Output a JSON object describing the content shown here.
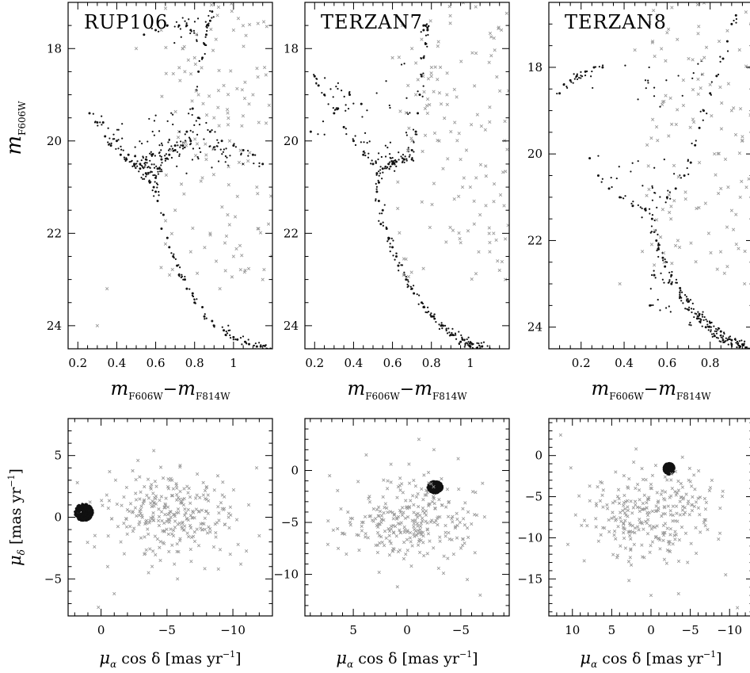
{
  "figure": {
    "colors": {
      "member": "#111111",
      "field": "#9a9a9a",
      "frame": "#000000"
    },
    "symbols": {
      "member": "filled-dot",
      "field": "small-x-cross"
    }
  },
  "chart_data": [
    {
      "type": "scatter",
      "kind": "cmd",
      "title": "RUP106",
      "xlabel_main": "m",
      "xlabel_sub1": "F606W",
      "xlabel_dash": "−",
      "xlabel_main2": "m",
      "xlabel_sub2": "F814W",
      "ylabel_main": "m",
      "ylabel_sub": "F606W",
      "show_ylabel": true,
      "xlim": [
        0.15,
        1.2
      ],
      "ylim": [
        24.5,
        17.0
      ],
      "reversed_y": true,
      "xticks": [
        0.2,
        0.4,
        0.6,
        0.8,
        1.0
      ],
      "xtick_labels": [
        "0.2",
        "0.4",
        "0.6",
        "0.8",
        "1"
      ],
      "yticks": [
        18,
        20,
        22,
        24
      ],
      "ytick_labels": [
        "18",
        "20",
        "22",
        "24"
      ],
      "series": [
        {
          "role": "member",
          "x": [
            0.64,
            0.66,
            0.69,
            0.72,
            0.76,
            0.8,
            0.85,
            0.9,
            0.96,
            1.02,
            1.08,
            1.14,
            1.19,
            0.63,
            0.67,
            0.71,
            0.75,
            0.79,
            0.84,
            0.89,
            0.95,
            1.0,
            1.06,
            1.12,
            1.17,
            0.58,
            0.55,
            0.52,
            0.46,
            0.4,
            0.33,
            0.26,
            0.62,
            0.7,
            0.76,
            0.79,
            0.81,
            0.82,
            0.84,
            0.85,
            0.86,
            0.87,
            0.88,
            0.89,
            0.9,
            0.54,
            0.6,
            0.66,
            0.72,
            0.76,
            0.78,
            0.59,
            0.57,
            0.55,
            0.52,
            0.49,
            0.45,
            0.42,
            0.37,
            0.34,
            0.3,
            0.61,
            0.6,
            0.6,
            0.61,
            0.63,
            0.67,
            0.7,
            0.74,
            0.78,
            0.82,
            0.88,
            0.94,
            1.0,
            1.05,
            1.1,
            1.15
          ],
          "y": [
            21.6,
            22.1,
            22.5,
            22.9,
            23.2,
            23.5,
            23.8,
            24.0,
            24.2,
            24.3,
            24.4,
            24.45,
            24.5,
            21.9,
            22.3,
            22.7,
            23.0,
            23.3,
            23.6,
            23.9,
            24.1,
            24.25,
            24.35,
            24.45,
            24.5,
            20.3,
            20.4,
            20.5,
            20.3,
            20.0,
            19.6,
            19.4,
            20.6,
            20.1,
            19.8,
            19.3,
            18.9,
            18.5,
            18.2,
            17.9,
            17.7,
            17.5,
            17.4,
            17.2,
            17.0,
            17.7,
            17.6,
            17.5,
            17.5,
            17.5,
            17.6,
            21.0,
            20.9,
            20.7,
            20.6,
            20.5,
            20.4,
            20.3,
            20.1,
            19.9,
            19.6,
            21.3,
            21.1,
            20.8,
            20.6,
            20.4,
            20.3,
            20.2,
            20.1,
            20.0,
            19.5,
            19.8,
            20.0,
            20.1,
            20.2,
            20.3,
            20.5
          ]
        },
        {
          "role": "field",
          "x": [
            0.75,
            0.82,
            0.9,
            0.98,
            1.05,
            1.12,
            0.7,
            0.88,
            1.0,
            1.15,
            0.8,
            0.95,
            1.08,
            0.72,
            0.86,
            1.02,
            1.18,
            0.78,
            0.93,
            1.1,
            0.68,
            0.84,
            0.97,
            1.06,
            0.74,
            0.91,
            1.13,
            1.0,
            0.35,
            0.5,
            0.3
          ],
          "y": [
            18.5,
            19.0,
            19.5,
            20.0,
            20.5,
            21.0,
            21.5,
            22.0,
            22.5,
            23.0,
            18.2,
            18.8,
            19.2,
            19.8,
            20.4,
            21.2,
            21.8,
            22.4,
            23.2,
            19.0,
            20.2,
            20.8,
            21.6,
            22.8,
            18.0,
            17.8,
            19.6,
            17.6,
            23.2,
            18.0,
            24.0
          ]
        }
      ]
    },
    {
      "type": "scatter",
      "kind": "cmd",
      "title": "TERZAN7",
      "xlabel_main": "m",
      "xlabel_sub1": "F606W",
      "xlabel_dash": "−",
      "xlabel_main2": "m",
      "xlabel_sub2": "F814W",
      "ylabel_main": "",
      "ylabel_sub": "",
      "show_ylabel": false,
      "xlim": [
        0.15,
        1.2
      ],
      "ylim": [
        24.5,
        17.0
      ],
      "reversed_y": true,
      "xticks": [
        0.2,
        0.4,
        0.6,
        0.8,
        1.0
      ],
      "xtick_labels": [
        "0.2",
        "0.4",
        "0.6",
        "0.8",
        "1"
      ],
      "yticks": [
        18,
        20,
        22,
        24
      ],
      "ytick_labels": [
        "18",
        "20",
        "22",
        "24"
      ],
      "series": [
        {
          "role": "member",
          "x": [
            0.55,
            0.57,
            0.6,
            0.63,
            0.67,
            0.71,
            0.76,
            0.81,
            0.86,
            0.91,
            0.96,
            1.01,
            1.06,
            1.1,
            0.54,
            0.58,
            0.62,
            0.66,
            0.7,
            0.75,
            0.8,
            0.85,
            0.9,
            0.95,
            1.0,
            1.05,
            0.6,
            0.66,
            0.7,
            0.72,
            0.73,
            0.74,
            0.75,
            0.76,
            0.77,
            0.78,
            0.76,
            0.76,
            0.77,
            0.78,
            0.5,
            0.45,
            0.4,
            0.35,
            0.3,
            0.25,
            0.2,
            0.53,
            0.52,
            0.52,
            0.53,
            0.55,
            0.58,
            0.62,
            0.66,
            0.7,
            0.44,
            0.38,
            0.32,
            0.22,
            0.18
          ],
          "y": [
            21.5,
            21.9,
            22.3,
            22.7,
            23.0,
            23.3,
            23.6,
            23.8,
            24.0,
            24.2,
            24.3,
            24.4,
            24.45,
            24.5,
            21.8,
            22.1,
            22.5,
            22.9,
            23.2,
            23.5,
            23.8,
            24.0,
            24.2,
            24.35,
            24.45,
            24.5,
            20.5,
            20.4,
            20.2,
            19.8,
            19.4,
            19.0,
            18.6,
            18.2,
            17.9,
            17.6,
            17.5,
            17.6,
            17.5,
            17.55,
            20.5,
            20.3,
            20.0,
            19.7,
            19.4,
            19.0,
            18.6,
            20.9,
            20.7,
            21.1,
            21.3,
            20.6,
            20.5,
            20.45,
            20.4,
            20.4,
            19.2,
            19.0,
            19.3,
            18.8,
            19.8
          ]
        },
        {
          "role": "field",
          "x": [
            0.65,
            0.7,
            0.8,
            0.85,
            0.9,
            0.95,
            1.0,
            1.05,
            1.1,
            1.15,
            0.75,
            0.82,
            0.88,
            0.92,
            0.98,
            1.03,
            1.08,
            1.12,
            0.68,
            0.78,
            0.86,
            0.94,
            1.02,
            1.1,
            1.18,
            0.6,
            0.72,
            0.84,
            0.96,
            1.14
          ],
          "y": [
            17.5,
            18.0,
            18.6,
            19.2,
            19.8,
            20.4,
            21.0,
            21.6,
            22.2,
            22.8,
            17.8,
            18.4,
            19.0,
            19.6,
            20.2,
            20.8,
            21.4,
            22.0,
            18.8,
            19.4,
            20.6,
            21.2,
            21.8,
            22.4,
            23.0,
            18.2,
            19.0,
            20.0,
            21.0,
            22.6
          ]
        }
      ]
    },
    {
      "type": "scatter",
      "kind": "cmd",
      "title": "TERZAN8",
      "xlabel_main": "m",
      "xlabel_sub1": "F606W",
      "xlabel_dash": "−",
      "xlabel_main2": "m",
      "xlabel_sub2": "F814W",
      "ylabel_main": "",
      "ylabel_sub": "",
      "show_ylabel": false,
      "xlim": [
        0.05,
        1.0
      ],
      "ylim": [
        24.5,
        16.5
      ],
      "reversed_y": true,
      "xticks": [
        0.2,
        0.4,
        0.6,
        0.8
      ],
      "xtick_labels": [
        "0.2",
        "0.4",
        "0.6",
        "0.8"
      ],
      "yticks": [
        18,
        20,
        22,
        24
      ],
      "ytick_labels": [
        "18",
        "20",
        "22",
        "24"
      ],
      "series": [
        {
          "role": "member",
          "x": [
            0.54,
            0.56,
            0.59,
            0.62,
            0.66,
            0.7,
            0.74,
            0.78,
            0.82,
            0.86,
            0.9,
            0.94,
            0.98,
            0.55,
            0.58,
            0.62,
            0.66,
            0.7,
            0.75,
            0.8,
            0.85,
            0.9,
            0.95,
            0.99,
            0.6,
            0.64,
            0.68,
            0.71,
            0.73,
            0.75,
            0.77,
            0.8,
            0.83,
            0.86,
            0.88,
            0.9,
            0.92,
            0.1,
            0.12,
            0.15,
            0.18,
            0.22,
            0.26,
            0.3,
            0.24,
            0.28,
            0.33,
            0.38,
            0.44,
            0.5,
            0.53,
            0.52,
            0.54
          ],
          "y": [
            21.8,
            22.2,
            22.6,
            23.0,
            23.3,
            23.6,
            23.8,
            24.0,
            24.2,
            24.3,
            24.4,
            24.45,
            24.5,
            22.0,
            22.4,
            22.8,
            23.1,
            23.4,
            23.7,
            23.9,
            24.1,
            24.3,
            24.4,
            24.5,
            21.0,
            20.8,
            20.5,
            20.2,
            19.8,
            19.4,
            19.0,
            18.6,
            18.2,
            17.8,
            17.4,
            17.0,
            16.8,
            18.6,
            18.4,
            18.3,
            18.2,
            18.1,
            18.0,
            18.0,
            20.1,
            20.5,
            20.8,
            21.0,
            21.2,
            21.3,
            21.5,
            23.5,
            22.8
          ]
        },
        {
          "role": "field",
          "x": [
            0.6,
            0.7,
            0.8,
            0.9,
            0.95,
            0.75,
            0.85,
            0.92,
            0.65,
            0.88,
            0.98,
            0.72,
            0.82,
            0.94,
            0.58,
            0.96,
            0.99,
            0.45,
            0.38
          ],
          "y": [
            17.2,
            17.8,
            18.4,
            19.0,
            19.6,
            20.2,
            20.8,
            21.4,
            22.0,
            22.6,
            18.0,
            19.2,
            20.0,
            21.0,
            18.8,
            23.0,
            17.0,
            17.6,
            23.0
          ]
        }
      ]
    },
    {
      "type": "scatter",
      "kind": "vpd",
      "xlabel_main": "μ",
      "xlabel_sub": "α",
      "xlabel_rest": " cos δ [mas yr",
      "xlabel_exp": "−1",
      "xlabel_end": "]",
      "ylabel_main": "μ",
      "ylabel_sub": "δ",
      "ylabel_rest": " [mas yr",
      "ylabel_exp": "−1",
      "ylabel_end": "]",
      "show_ylabel": true,
      "xlim": [
        2.5,
        -13.0
      ],
      "ylim": [
        -8.0,
        8.0
      ],
      "reversed_x": true,
      "xticks": [
        0,
        -5,
        -10
      ],
      "xtick_labels": [
        "0",
        "−5",
        "−10"
      ],
      "yticks": [
        -5,
        0,
        5
      ],
      "ytick_labels": [
        "−5",
        "0",
        "5"
      ],
      "series": [
        {
          "role": "member",
          "clump_center": [
            1.3,
            0.4
          ],
          "clump_radius": [
            0.7,
            0.7
          ]
        },
        {
          "role": "field",
          "x": [
            -5.5,
            -6.2,
            -4.8,
            -7.1,
            -3.9,
            -8.0,
            -2.5,
            -9.2,
            -1.5,
            -10.3,
            -4.2,
            -6.8,
            -5.1,
            -7.7,
            -3.3,
            -8.6,
            -2.0,
            -9.8,
            -11.2,
            -12.0,
            0.5,
            -0.5,
            1.8,
            -4.5,
            -6.0,
            -5.8,
            -7.3,
            -3.6,
            -8.9,
            -2.8,
            -10.6,
            -1.0,
            -4.0,
            -6.5,
            -5.3,
            -7.9,
            -3.0,
            -9.4,
            -11.8,
            0.2
          ],
          "y": [
            0.2,
            -0.4,
            0.8,
            -1.2,
            1.3,
            0.5,
            -0.9,
            1.8,
            -2.0,
            -0.2,
            2.5,
            -2.6,
            3.1,
            -0.5,
            -1.6,
            2.2,
            0.6,
            -3.0,
            1.0,
            -1.5,
            -2.4,
            -4.0,
            2.8,
            -3.5,
            4.2,
            -5.0,
            3.5,
            -4.5,
            -4.2,
            4.6,
            -3.8,
            -6.2,
            5.4,
            -0.1,
            0.0,
            1.5,
            0.3,
            -0.6,
            4.0,
            -7.3
          ]
        }
      ]
    },
    {
      "type": "scatter",
      "kind": "vpd",
      "xlabel_main": "μ",
      "xlabel_sub": "α",
      "xlabel_rest": " cos δ [mas yr",
      "xlabel_exp": "−1",
      "xlabel_end": "]",
      "ylabel_main": "",
      "ylabel_sub": "",
      "ylabel_rest": "",
      "ylabel_exp": "",
      "ylabel_end": "",
      "show_ylabel": false,
      "xlim": [
        9.5,
        -9.5
      ],
      "ylim": [
        -14.0,
        5.0
      ],
      "reversed_x": true,
      "xticks": [
        5,
        0,
        -5
      ],
      "xtick_labels": [
        "5",
        "0",
        "−5"
      ],
      "yticks": [
        0,
        -5,
        -10
      ],
      "ytick_labels": [
        "0",
        "−5",
        "−10"
      ],
      "series": [
        {
          "role": "member",
          "clump_center": [
            -2.6,
            -1.6
          ],
          "clump_radius": [
            0.7,
            0.6
          ]
        },
        {
          "role": "field",
          "x": [
            0.0,
            1.2,
            -1.5,
            2.4,
            -2.8,
            3.5,
            -3.9,
            0.6,
            -0.8,
            1.8,
            -2.1,
            2.9,
            -3.2,
            4.2,
            -4.5,
            0.3,
            -0.4,
            1.5,
            -1.9,
            2.6,
            -2.5,
            3.8,
            -4.8,
            5.5,
            -5.6,
            6.4,
            -6.8,
            7.2,
            0.9,
            -1.1,
            2.0,
            -2.3
          ],
          "y": [
            -3.5,
            -4.2,
            -2.8,
            -5.0,
            -4.6,
            -2.5,
            -3.0,
            -6.0,
            -1.5,
            -1.0,
            -6.8,
            -7.2,
            -0.8,
            -5.8,
            -5.4,
            -8.5,
            -9.2,
            0.6,
            -8.0,
            -9.8,
            2.0,
            1.5,
            -1.8,
            -4.0,
            -10.5,
            -7.5,
            -12.0,
            -0.5,
            -11.2,
            3.0,
            -3.2,
            -4.8
          ]
        }
      ]
    },
    {
      "type": "scatter",
      "kind": "vpd",
      "xlabel_main": "μ",
      "xlabel_sub": "α",
      "xlabel_rest": " cos δ [mas yr",
      "xlabel_exp": "−1",
      "xlabel_end": "]",
      "ylabel_main": "",
      "ylabel_sub": "",
      "ylabel_rest": "",
      "ylabel_exp": "",
      "ylabel_end": "",
      "show_ylabel": false,
      "xlim": [
        13.0,
        -13.0
      ],
      "ylim": [
        -19.5,
        4.5
      ],
      "reversed_x": true,
      "xticks": [
        10,
        5,
        0,
        -5,
        -10
      ],
      "xtick_labels": [
        "10",
        "5",
        "0",
        "−5",
        "−10"
      ],
      "yticks": [
        0,
        -5,
        -10,
        -15
      ],
      "ytick_labels": [
        "0",
        "−5",
        "−10",
        "−15"
      ],
      "series": [
        {
          "role": "member",
          "clump_center": [
            -2.3,
            -1.6
          ],
          "clump_radius": [
            0.7,
            0.7
          ]
        },
        {
          "role": "field",
          "x": [
            0.0,
            1.5,
            -1.8,
            3.0,
            -3.2,
            4.5,
            -4.8,
            0.8,
            -0.6,
            2.2,
            -2.5,
            3.8,
            -4.0,
            5.6,
            -6.0,
            0.4,
            -0.2,
            1.9,
            -2.1,
            6.8,
            -7.2,
            8.5,
            -8.8,
            10.2,
            -9.5,
            0.0,
            2.8,
            -3.5,
            11.5,
            -11.0
          ],
          "y": [
            -3.5,
            -4.2,
            -2.6,
            -5.5,
            -4.8,
            -2.0,
            -3.0,
            -6.5,
            -1.2,
            -0.8,
            -7.2,
            -8.0,
            -0.2,
            -6.0,
            -5.2,
            -9.5,
            -10.5,
            0.8,
            -11.5,
            -3.8,
            -9.0,
            -12.8,
            -6.4,
            -1.5,
            -14.5,
            -17.0,
            -15.2,
            -16.8,
            2.5,
            -18.5
          ]
        }
      ]
    }
  ]
}
